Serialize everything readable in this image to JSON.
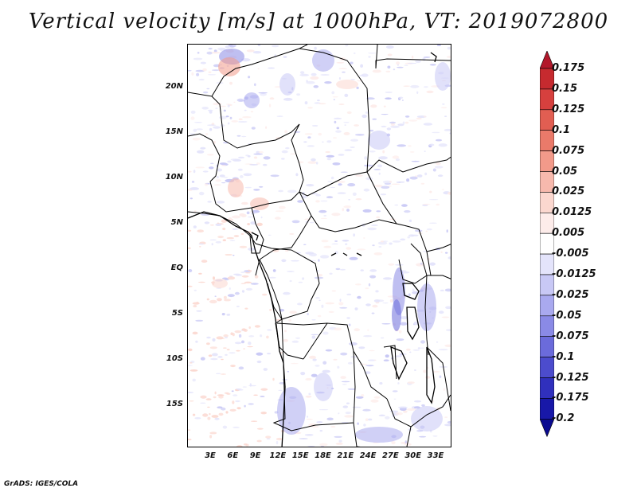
{
  "title": "Vertical velocity [m/s] at 1000hPa, VT: 2019072800",
  "credit": "GrADS: IGES/COLA",
  "map": {
    "lat_labels": [
      "20N",
      "15N",
      "10N",
      "5N",
      "EQ",
      "5S",
      "10S",
      "15S"
    ],
    "lon_labels": [
      "3E",
      "6E",
      "9E",
      "12E",
      "15E",
      "18E",
      "21E",
      "24E",
      "27E",
      "30E",
      "33E"
    ]
  },
  "colorbar": {
    "labels": [
      "0.175",
      "0.15",
      "0.125",
      "0.1",
      "0.075",
      "0.05",
      "0.025",
      "0.0125",
      "0.005",
      "-0.005",
      "-0.0125",
      "-0.025",
      "-0.05",
      "-0.075",
      "-0.1",
      "-0.125",
      "-0.175",
      "-0.2"
    ],
    "colors": [
      "#b2182b",
      "#c62a2f",
      "#d6403e",
      "#e15e52",
      "#ea7a6a",
      "#f29a8a",
      "#f7b9ad",
      "#fbd7cf",
      "#fdecea",
      "#ffffff",
      "#e4e4fb",
      "#c8c8f5",
      "#a9a9ef",
      "#8a8ae6",
      "#6b6bdb",
      "#4c4ccd",
      "#3030bd",
      "#1818a8",
      "#0a0a90"
    ]
  }
}
